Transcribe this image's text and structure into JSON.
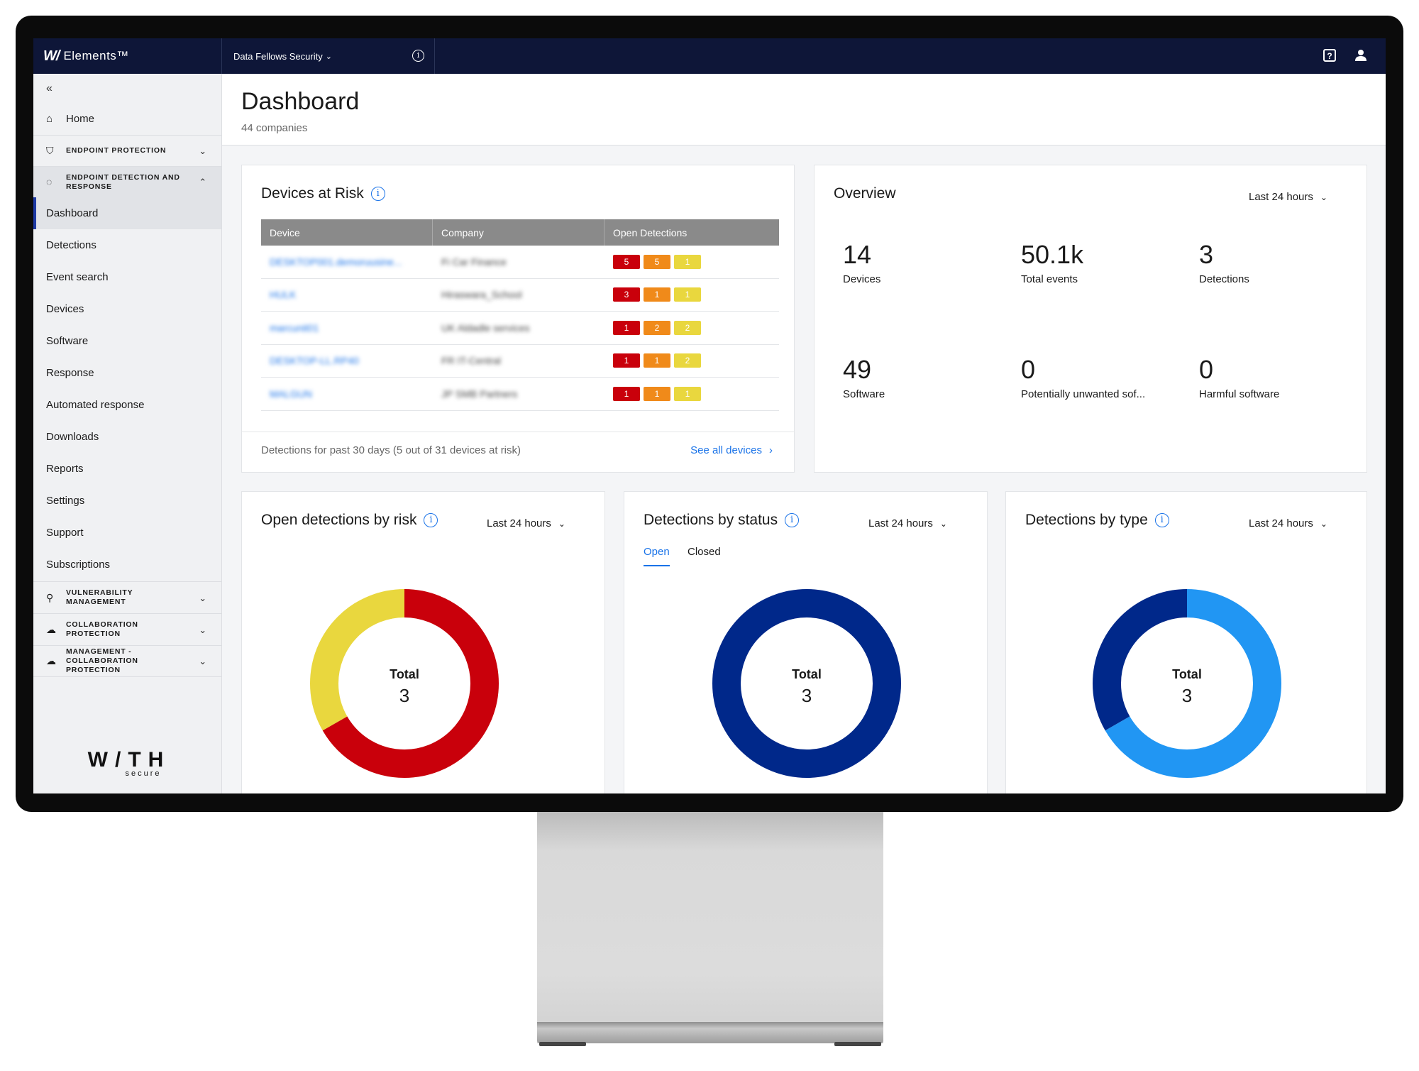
{
  "topbar": {
    "brand_mark": "W/",
    "brand_name": "Elements™",
    "org_label": "Data Fellows Security",
    "org_info_icon": "info-icon",
    "help_icon": "help-icon",
    "user_icon": "user-icon"
  },
  "sidebar": {
    "collapse_icon": "«",
    "home_label": "Home",
    "groups": {
      "endpoint_protection": "ENDPOINT PROTECTION",
      "edr": "ENDPOINT DETECTION AND RESPONSE",
      "vulnerability": "VULNERABILITY MANAGEMENT",
      "collaboration": "COLLABORATION PROTECTION",
      "mgmt_collab": "MANAGEMENT - COLLABORATION PROTECTION"
    },
    "items": [
      "Dashboard",
      "Detections",
      "Event search",
      "Devices",
      "Software",
      "Response",
      "Automated response",
      "Downloads",
      "Reports",
      "Settings",
      "Support",
      "Subscriptions"
    ],
    "logo_main": "W/TH",
    "logo_sub": "secure"
  },
  "page": {
    "title": "Dashboard",
    "subtitle": "44 companies"
  },
  "devices_at_risk": {
    "title": "Devices at Risk",
    "columns": [
      "Device",
      "Company",
      "Open Detections"
    ],
    "rows": [
      {
        "device": "DESKTOP001.demoruusine...",
        "company": "Fi Car Finance",
        "high": "5",
        "medium": "5",
        "low": "1"
      },
      {
        "device": "HULK",
        "company": "Hiraswara_School",
        "high": "3",
        "medium": "1",
        "low": "1"
      },
      {
        "device": "marcunit01",
        "company": "UK Aldadle services",
        "high": "1",
        "medium": "2",
        "low": "2"
      },
      {
        "device": "DESKTOP-LL.RP40",
        "company": "FR IT-Central",
        "high": "1",
        "medium": "1",
        "low": "2"
      },
      {
        "device": "MALGUN",
        "company": "JP SMB Partners",
        "high": "1",
        "medium": "1",
        "low": "1"
      }
    ],
    "footer": "Detections for past 30 days (5 out of 31 devices at risk)",
    "see_all": "See all devices"
  },
  "overview": {
    "title": "Overview",
    "period": "Last 24 hours",
    "stats": [
      {
        "value": "14",
        "label": "Devices"
      },
      {
        "value": "50.1k",
        "label": "Total events"
      },
      {
        "value": "3",
        "label": "Detections"
      },
      {
        "value": "49",
        "label": "Software"
      },
      {
        "value": "0",
        "label": "Potentially unwanted sof..."
      },
      {
        "value": "0",
        "label": "Harmful software"
      }
    ]
  },
  "open_by_risk": {
    "title": "Open detections by risk",
    "period": "Last 24 hours",
    "total_label": "Total",
    "total": "3",
    "segments": [
      {
        "value": 2,
        "color": "#c9000b"
      },
      {
        "value": 1,
        "color": "#e9d73e"
      }
    ]
  },
  "by_status": {
    "title": "Detections by status",
    "period": "Last 24 hours",
    "tabs": [
      "Open",
      "Closed"
    ],
    "total_label": "Total",
    "total": "3",
    "segments": [
      {
        "value": 3,
        "color": "#00288a"
      }
    ]
  },
  "by_type": {
    "title": "Detections by type",
    "period": "Last 24 hours",
    "total_label": "Total",
    "total": "3",
    "segments": [
      {
        "value": 2,
        "color": "#2196f3"
      },
      {
        "value": 1,
        "color": "#00288a"
      }
    ]
  },
  "colors": {
    "topbar": "#0e1638",
    "accent": "#1a73e8",
    "risk_high": "#c9000b",
    "risk_medium": "#f08a1a",
    "risk_low": "#e9d73e"
  }
}
